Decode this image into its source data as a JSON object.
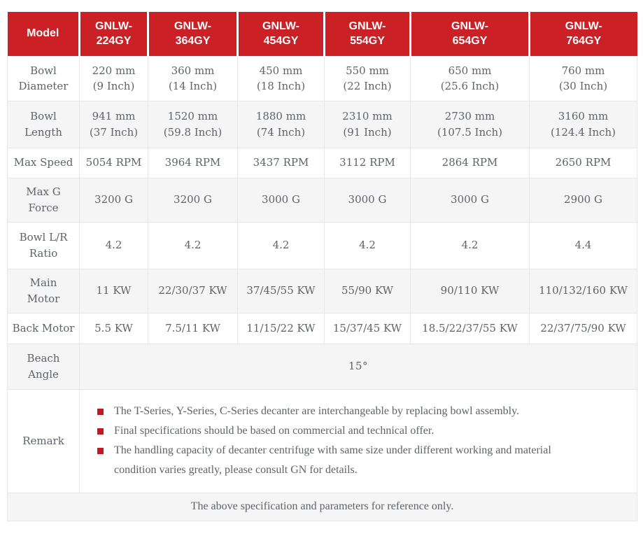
{
  "colors": {
    "header_bg": "#cb2026",
    "header_text": "#ffffff",
    "body_text": "#5f6368",
    "stripe_bg": "#f5f5f5",
    "border": "#e7e7e7",
    "bullet": "#c2181f"
  },
  "table": {
    "header": {
      "model_label": "Model",
      "models": [
        "GNLW-\n224GY",
        "GNLW-\n364GY",
        "GNLW-\n454GY",
        "GNLW-\n554GY",
        "GNLW-\n654GY",
        "GNLW-\n764GY"
      ]
    },
    "rows": [
      {
        "label": "Bowl\nDiameter",
        "values": [
          "220 mm\n(9 Inch)",
          "360 mm\n(14 Inch)",
          "450 mm\n(18 Inch)",
          "550 mm\n(22 Inch)",
          "650 mm\n(25.6 Inch)",
          "760 mm\n(30 Inch)"
        ]
      },
      {
        "label": "Bowl\nLength",
        "values": [
          "941 mm\n(37 Inch)",
          "1520 mm\n(59.8 Inch)",
          "1880 mm\n(74 Inch)",
          "2310 mm\n(91 Inch)",
          "2730 mm\n(107.5 Inch)",
          "3160 mm\n(124.4 Inch)"
        ]
      },
      {
        "label": "Max Speed",
        "values": [
          "5054 RPM",
          "3964 RPM",
          "3437 RPM",
          "3112 RPM",
          "2864 RPM",
          "2650 RPM"
        ]
      },
      {
        "label": "Max G\nForce",
        "values": [
          "3200 G",
          "3200 G",
          "3000 G",
          "3000 G",
          "3000 G",
          "2900 G"
        ]
      },
      {
        "label": "Bowl L/R\nRatio",
        "values": [
          "4.2",
          "4.2",
          "4.2",
          "4.2",
          "4.2",
          "4.4"
        ]
      },
      {
        "label": "Main\nMotor",
        "values": [
          "11 KW",
          "22/30/37 KW",
          "37/45/55 KW",
          "55/90 KW",
          "90/110 KW",
          "110/132/160 KW"
        ]
      },
      {
        "label": "Back Motor",
        "values": [
          "5.5 KW",
          "7.5/11 KW",
          "11/15/22 KW",
          "15/37/45 KW",
          "18.5/22/37/55 KW",
          "22/37/75/90 KW"
        ]
      }
    ],
    "beach_angle": {
      "label": "Beach\nAngle",
      "value": "15°"
    },
    "remark": {
      "label": "Remark",
      "bullets": [
        "The T-Series, Y-Series, C-Series decanter are interchangeable by replacing bowl assembly.",
        "Final specifications should be based on commercial and technical offer.",
        "The handling capacity of decanter centrifuge with same size under different working and material condition varies greatly, please consult GN for details."
      ]
    },
    "footer_note": "The above specification and parameters for reference only."
  }
}
